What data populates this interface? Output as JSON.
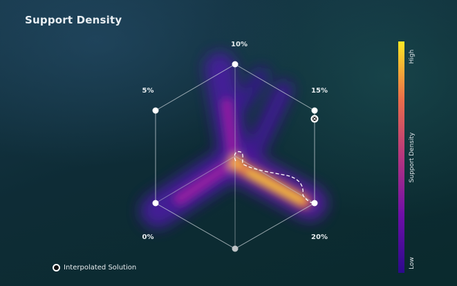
{
  "chart_data": {
    "type": "heatmap",
    "subtype": "ternary-hexagon-density",
    "title": "Support Density",
    "axes": [
      {
        "label": "10%",
        "position": "top"
      },
      {
        "label": "15%",
        "position": "upper-right"
      },
      {
        "label": "20%",
        "position": "lower-right"
      },
      {
        "label": "0%",
        "position": "lower-left"
      },
      {
        "label": "5%",
        "position": "upper-left"
      }
    ],
    "colorbar": {
      "label": "Support Density",
      "high_label": "High",
      "low_label": "Low",
      "colormap": "plasma"
    },
    "legend": {
      "entries": [
        {
          "name": "Interpolated Solution",
          "marker": "circle-white-ring"
        }
      ],
      "placement": "bottom-left"
    },
    "grid": true
  },
  "colors": {
    "background": "#0d2a33",
    "grid_line": "#c9d3d8",
    "vertex_point": "#ffffff",
    "bottom_vertex_point": "#bfc4c7",
    "path": "#ffffff",
    "colormap_low": "#2c0a8c",
    "colormap_mid": "#c83f7e",
    "colormap_high": "#fde725"
  }
}
